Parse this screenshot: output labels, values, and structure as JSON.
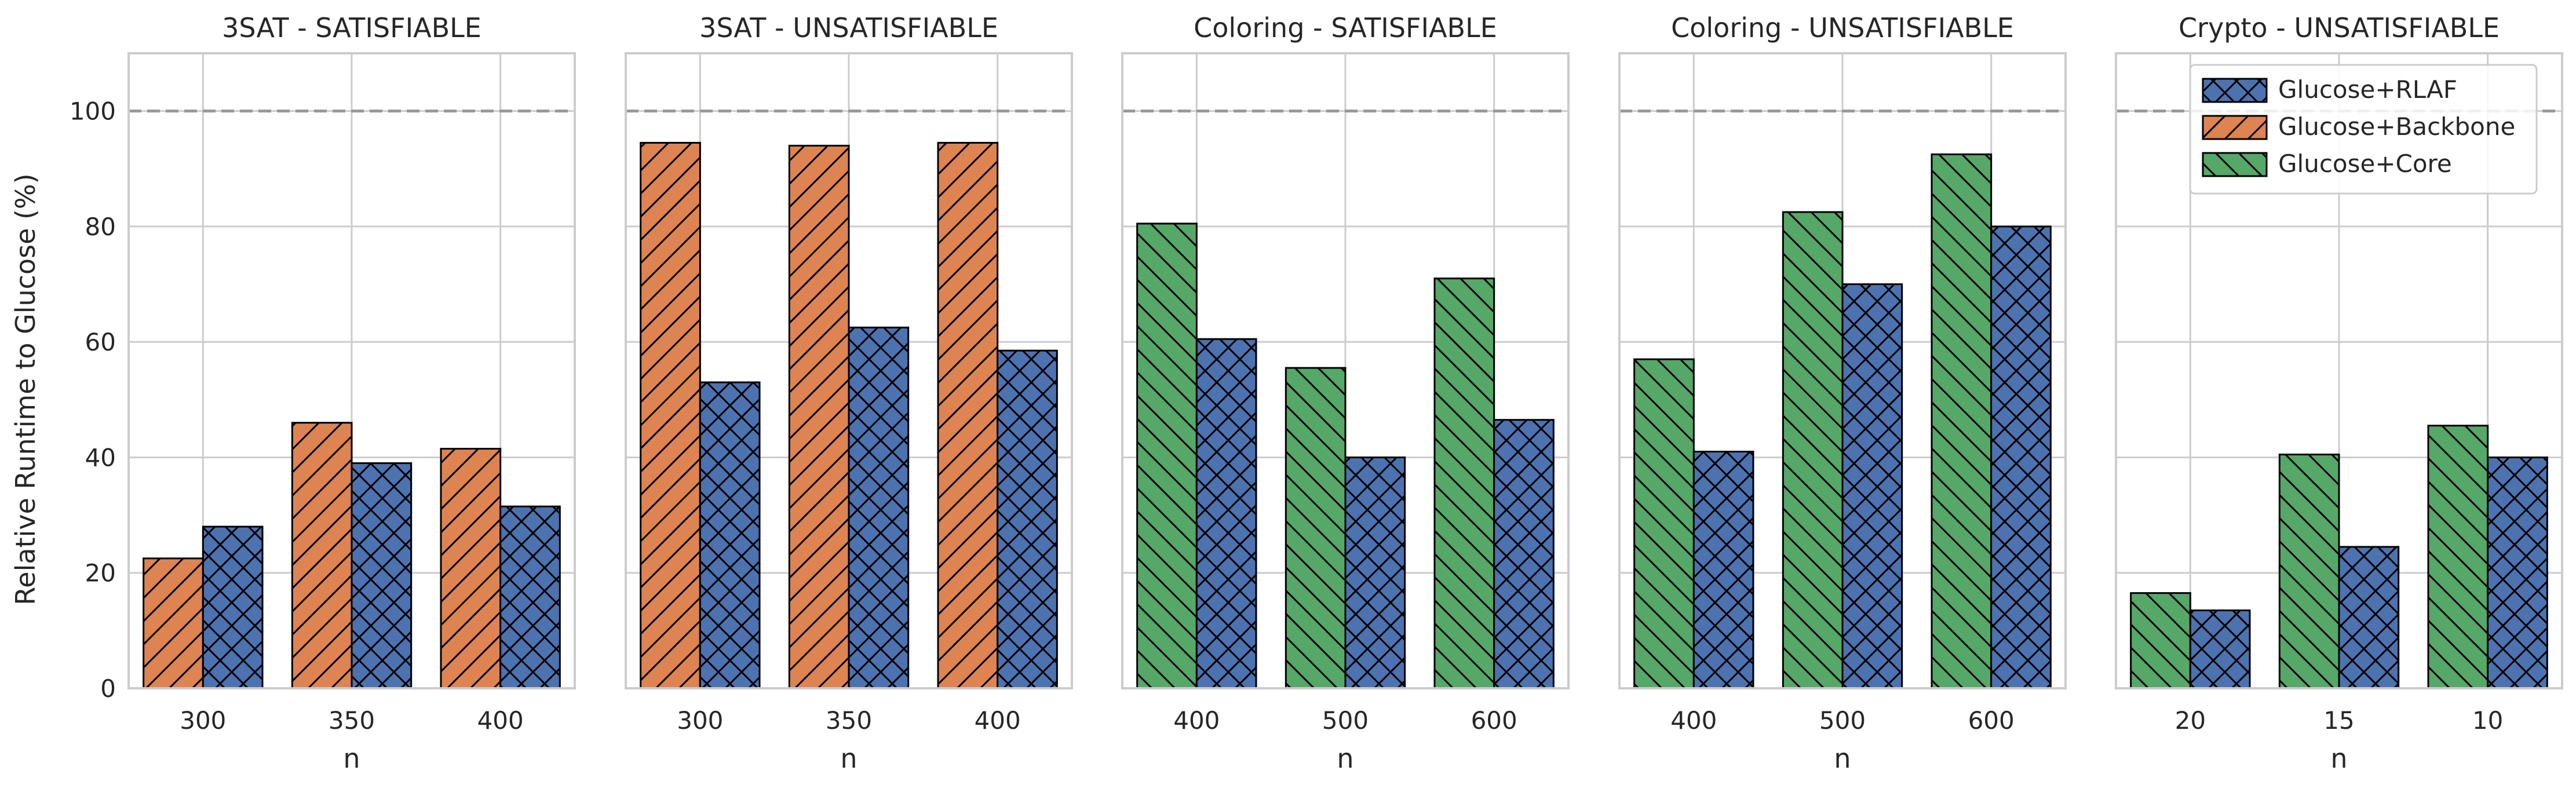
{
  "chart_data": {
    "type": "bar",
    "ylabel": "Relative Runtime to Glucose (%)",
    "xlabel": "n",
    "ylim": [
      0,
      110
    ],
    "yticks": [
      0,
      20,
      40,
      60,
      80,
      100
    ],
    "reference_line": 100,
    "grid": true,
    "legend_position": "top-right",
    "legend": [
      {
        "name": "Glucose+RLAF",
        "color": "#4c72b0",
        "hatch": "crosshatch"
      },
      {
        "name": "Glucose+Backbone",
        "color": "#dd8452",
        "hatch": "forward-diagonal"
      },
      {
        "name": "Glucose+Core",
        "color": "#55a868",
        "hatch": "back-diagonal"
      }
    ],
    "panels": [
      {
        "title": "3SAT - SATISFIABLE",
        "categories": [
          "300",
          "350",
          "400"
        ],
        "series": [
          {
            "name": "Glucose+Backbone",
            "values": [
              22.5,
              46,
              41.5
            ]
          },
          {
            "name": "Glucose+RLAF",
            "values": [
              28,
              39,
              31.5
            ]
          }
        ]
      },
      {
        "title": "3SAT - UNSATISFIABLE",
        "categories": [
          "300",
          "350",
          "400"
        ],
        "series": [
          {
            "name": "Glucose+Backbone",
            "values": [
              94.5,
              94,
              94.5
            ]
          },
          {
            "name": "Glucose+RLAF",
            "values": [
              53,
              62.5,
              58.5
            ]
          }
        ]
      },
      {
        "title": "Coloring - SATISFIABLE",
        "categories": [
          "400",
          "500",
          "600"
        ],
        "series": [
          {
            "name": "Glucose+Core",
            "values": [
              80.5,
              55.5,
              71
            ]
          },
          {
            "name": "Glucose+RLAF",
            "values": [
              60.5,
              40,
              46.5
            ]
          }
        ]
      },
      {
        "title": "Coloring - UNSATISFIABLE",
        "categories": [
          "400",
          "500",
          "600"
        ],
        "series": [
          {
            "name": "Glucose+Core",
            "values": [
              57,
              82.5,
              92.5
            ]
          },
          {
            "name": "Glucose+RLAF",
            "values": [
              41,
              70,
              80
            ]
          }
        ]
      },
      {
        "title": "Crypto - UNSATISFIABLE",
        "categories": [
          "20",
          "15",
          "10"
        ],
        "series": [
          {
            "name": "Glucose+Core",
            "values": [
              16.5,
              40.5,
              45.5
            ]
          },
          {
            "name": "Glucose+RLAF",
            "values": [
              13.5,
              24.5,
              40
            ]
          }
        ]
      }
    ]
  }
}
